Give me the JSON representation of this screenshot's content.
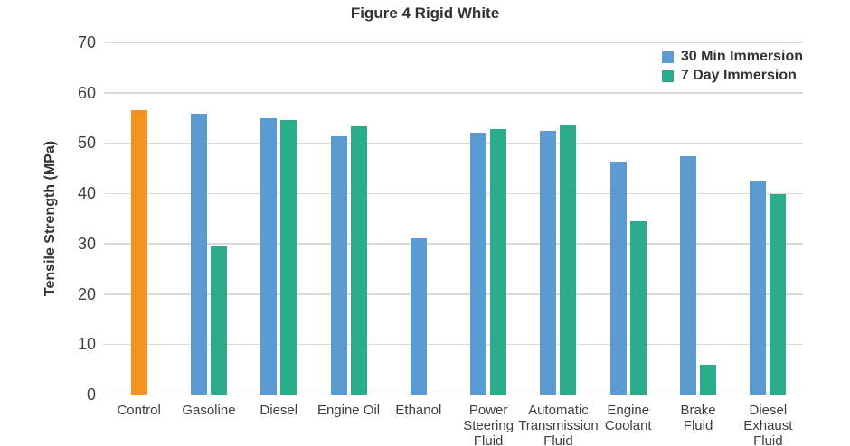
{
  "chart_data": {
    "type": "bar",
    "title": "Figure 4 Rigid White",
    "y_axis": {
      "title": "Tensile Strength (MPa)",
      "min": 0,
      "max": 70,
      "tick_step": 10,
      "ticks": [
        0,
        10,
        20,
        30,
        40,
        50,
        60,
        70
      ]
    },
    "grid": "horizontal",
    "legend_position": "top-right",
    "categories": [
      "Control",
      "Gasoline",
      "Diesel",
      "Engine Oil",
      "Ethanol",
      "Power\nSteering\nFluid",
      "Automatic\nTransmission\nFluid",
      "Engine\nCoolant",
      "Brake\nFluid",
      "Diesel\nExhaust\nFluid"
    ],
    "series": [
      {
        "name": "Control",
        "color": "#F5921E",
        "in_legend": false,
        "values": [
          56.6,
          null,
          null,
          null,
          null,
          null,
          null,
          null,
          null,
          null
        ]
      },
      {
        "name": "30 Min Immersion",
        "color": "#5B9BD2",
        "in_legend": true,
        "values": [
          null,
          55.8,
          55.0,
          51.3,
          31.0,
          52.1,
          52.4,
          46.3,
          47.4,
          42.6
        ]
      },
      {
        "name": "7 Day Immersion",
        "color": "#2BAD8C",
        "in_legend": true,
        "values": [
          null,
          29.7,
          54.6,
          53.4,
          null,
          52.7,
          53.6,
          34.4,
          5.9,
          39.8
        ]
      }
    ],
    "colors": {
      "control_bar": "#F5921E",
      "immersion_30min_bar": "#5B9BD2",
      "immersion_7day_bar": "#2BAD8C",
      "gridline": "#D9D9D9",
      "text": "#333333"
    }
  }
}
